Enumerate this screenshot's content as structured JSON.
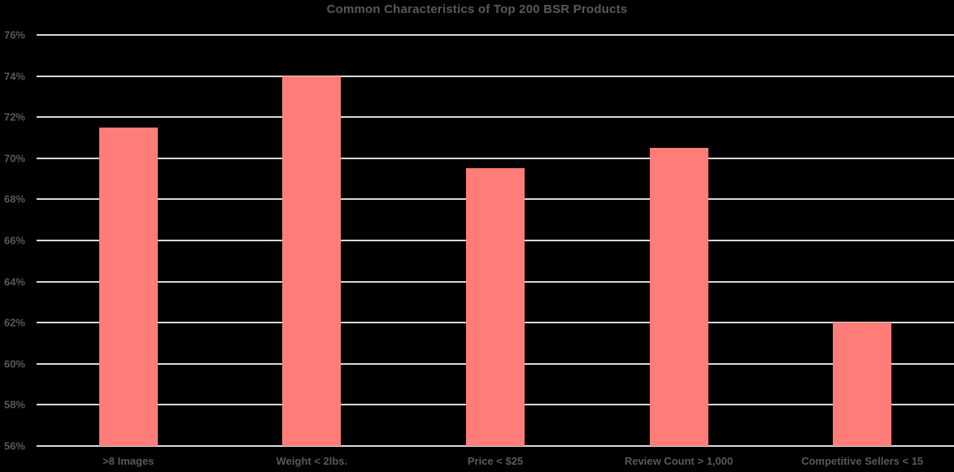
{
  "chart_data": {
    "type": "bar",
    "title": "Common Characteristics of Top 200 BSR Products",
    "categories": [
      ">8 Images",
      "Weight < 2lbs.",
      "Price < $25",
      "Review Count > 1,000",
      "Competitive Sellers < 15"
    ],
    "values": [
      71.5,
      74,
      69.5,
      70.5,
      62
    ],
    "value_unit": "%",
    "yticks": [
      "76%",
      "74%",
      "72%",
      "70%",
      "68%",
      "66%",
      "64%",
      "62%",
      "60%",
      "58%",
      "56%"
    ],
    "ylim": [
      56,
      76
    ],
    "xlabel": "",
    "ylabel": "",
    "grid": "horizontal",
    "legend": "none",
    "colors": {
      "background": "#000000",
      "bar": "#ff7d78",
      "gridline": "#d9d9d9",
      "text": "#595959"
    }
  }
}
